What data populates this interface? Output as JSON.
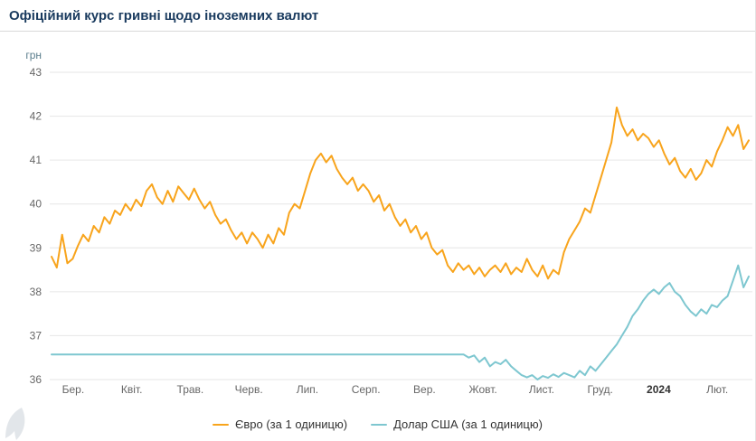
{
  "page": {
    "title": "Офіційний курс гривні щодо іноземних валют"
  },
  "chart_data": {
    "type": "line",
    "y_axis_title": "грн",
    "ylim": [
      36,
      43
    ],
    "y_ticks": [
      36,
      37,
      38,
      39,
      40,
      41,
      42,
      43
    ],
    "x_tick_labels": [
      "Бер.",
      "Квіт.",
      "Трав.",
      "Черв.",
      "Лип.",
      "Серп.",
      "Вер.",
      "Жовт.",
      "Лист.",
      "Груд.",
      "2024",
      "Лют."
    ],
    "bold_x_labels": [
      "2024"
    ],
    "grid": "horizontal",
    "legend_position": "bottom-center",
    "series": [
      {
        "name": "Євро (за 1 одиницю)",
        "key": "euro",
        "color": "#f8a41c",
        "values": [
          38.8,
          38.55,
          39.3,
          38.65,
          38.75,
          39.05,
          39.3,
          39.15,
          39.5,
          39.35,
          39.7,
          39.55,
          39.85,
          39.75,
          40.0,
          39.85,
          40.1,
          39.95,
          40.3,
          40.45,
          40.15,
          40.0,
          40.3,
          40.05,
          40.4,
          40.25,
          40.1,
          40.35,
          40.1,
          39.9,
          40.05,
          39.75,
          39.55,
          39.65,
          39.4,
          39.2,
          39.35,
          39.1,
          39.35,
          39.2,
          39.0,
          39.3,
          39.1,
          39.45,
          39.3,
          39.8,
          40.0,
          39.9,
          40.3,
          40.7,
          41.0,
          41.15,
          40.95,
          41.1,
          40.8,
          40.6,
          40.45,
          40.6,
          40.3,
          40.45,
          40.3,
          40.05,
          40.2,
          39.85,
          40.0,
          39.7,
          39.5,
          39.65,
          39.35,
          39.5,
          39.2,
          39.35,
          39.0,
          38.85,
          38.95,
          38.6,
          38.45,
          38.65,
          38.5,
          38.6,
          38.4,
          38.55,
          38.35,
          38.5,
          38.6,
          38.45,
          38.65,
          38.4,
          38.55,
          38.45,
          38.75,
          38.5,
          38.35,
          38.6,
          38.3,
          38.5,
          38.4,
          38.9,
          39.2,
          39.4,
          39.6,
          39.9,
          39.8,
          40.2,
          40.6,
          41.0,
          41.4,
          42.2,
          41.8,
          41.55,
          41.7,
          41.45,
          41.6,
          41.5,
          41.3,
          41.45,
          41.15,
          40.9,
          41.05,
          40.75,
          40.6,
          40.8,
          40.55,
          40.7,
          41.0,
          40.85,
          41.2,
          41.45,
          41.75,
          41.55,
          41.8,
          41.25,
          41.45
        ]
      },
      {
        "name": "Долар США (за 1 одиницю)",
        "key": "usd",
        "color": "#7ec7d0",
        "values": [
          36.57,
          36.57,
          36.57,
          36.57,
          36.57,
          36.57,
          36.57,
          36.57,
          36.57,
          36.57,
          36.57,
          36.57,
          36.57,
          36.57,
          36.57,
          36.57,
          36.57,
          36.57,
          36.57,
          36.57,
          36.57,
          36.57,
          36.57,
          36.57,
          36.57,
          36.57,
          36.57,
          36.57,
          36.57,
          36.57,
          36.57,
          36.57,
          36.57,
          36.57,
          36.57,
          36.57,
          36.57,
          36.57,
          36.57,
          36.57,
          36.57,
          36.57,
          36.57,
          36.57,
          36.57,
          36.57,
          36.57,
          36.57,
          36.57,
          36.57,
          36.57,
          36.57,
          36.57,
          36.57,
          36.57,
          36.57,
          36.57,
          36.57,
          36.57,
          36.57,
          36.57,
          36.57,
          36.57,
          36.57,
          36.57,
          36.57,
          36.57,
          36.57,
          36.57,
          36.57,
          36.57,
          36.57,
          36.57,
          36.57,
          36.57,
          36.57,
          36.57,
          36.57,
          36.57,
          36.5,
          36.55,
          36.4,
          36.5,
          36.3,
          36.4,
          36.35,
          36.45,
          36.3,
          36.2,
          36.1,
          36.05,
          36.1,
          36.0,
          36.08,
          36.04,
          36.12,
          36.06,
          36.15,
          36.1,
          36.05,
          36.2,
          36.1,
          36.3,
          36.2,
          36.35,
          36.5,
          36.65,
          36.8,
          37.0,
          37.2,
          37.45,
          37.6,
          37.8,
          37.95,
          38.05,
          37.95,
          38.1,
          38.2,
          38.0,
          37.9,
          37.7,
          37.55,
          37.45,
          37.6,
          37.5,
          37.7,
          37.65,
          37.8,
          37.9,
          38.25,
          38.6,
          38.1,
          38.35
        ]
      }
    ]
  }
}
